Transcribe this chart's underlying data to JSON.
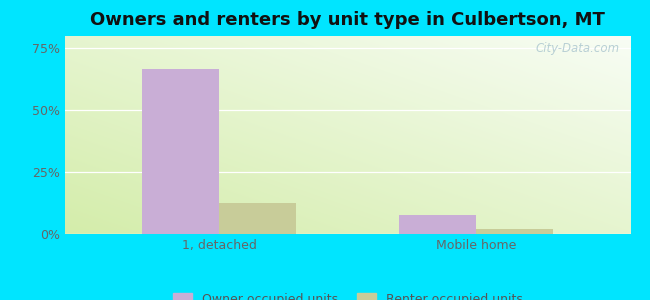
{
  "title": "Owners and renters by unit type in Culbertson, MT",
  "categories": [
    "1, detached",
    "Mobile home"
  ],
  "owner_values": [
    66.7,
    7.7
  ],
  "renter_values": [
    12.5,
    1.9
  ],
  "owner_color": "#c9aed6",
  "renter_color": "#c8cc99",
  "outer_bg": "#00e5ff",
  "yticks": [
    0,
    25,
    50,
    75
  ],
  "ylim": [
    0,
    80
  ],
  "bar_width": 0.3,
  "title_fontsize": 13,
  "tick_fontsize": 9,
  "legend_fontsize": 9,
  "watermark": "City-Data.com",
  "xlim": [
    -0.6,
    1.6
  ]
}
